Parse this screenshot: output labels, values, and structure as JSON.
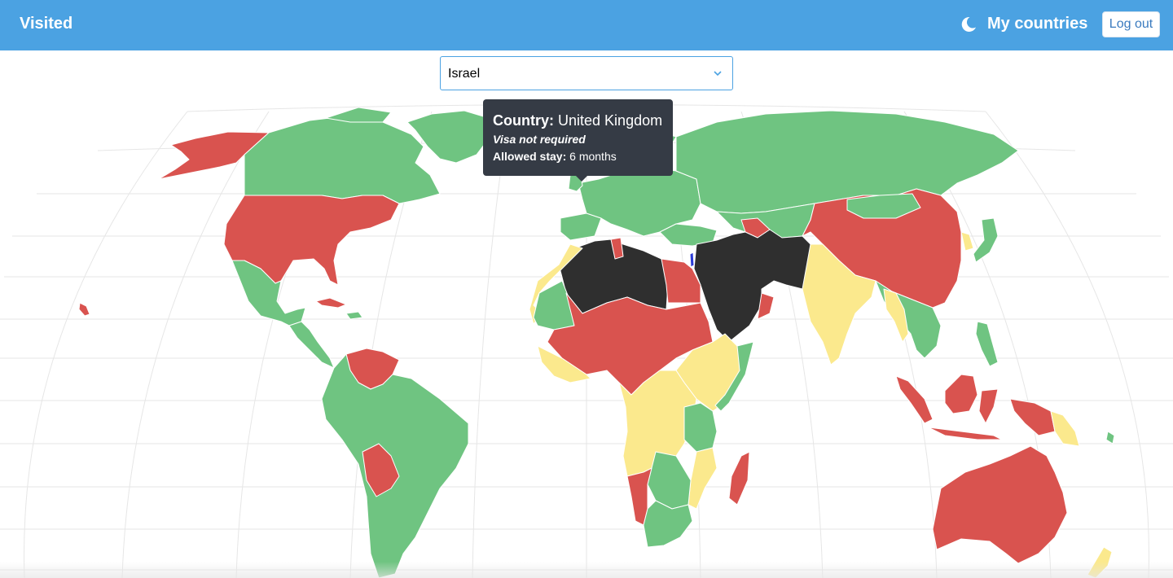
{
  "header": {
    "brand": "Visited",
    "theme_toggle_icon": "moon-icon",
    "nav_link": "My countries",
    "logout_label": "Log out",
    "color": "#4ba2e2"
  },
  "country_select": {
    "selected": "Israel",
    "icon": "chevron-down-icon"
  },
  "map": {
    "projection": "world",
    "legend_colors": {
      "visa_not_required": "#6fc481",
      "visa_on_arrival": "#fbe98d",
      "visa_required": "#d9534f",
      "no_admission": "#2f2f2f",
      "selected_country": "#2b3bd6"
    }
  },
  "tooltip": {
    "country_label": "Country:",
    "country_name": "United Kingdom",
    "status": "Visa not required",
    "stay_label": "Allowed stay:",
    "stay_value": "6 months"
  }
}
